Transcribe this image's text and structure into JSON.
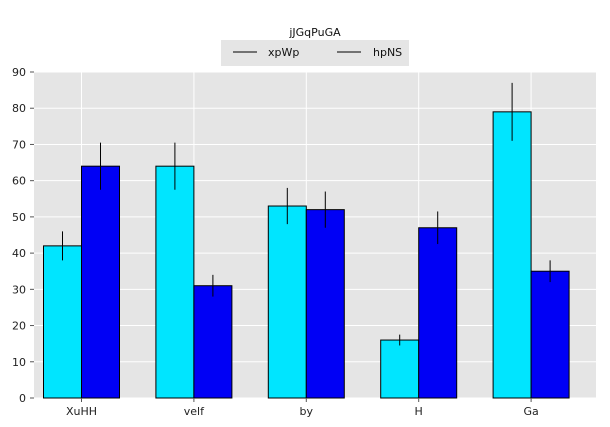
{
  "chart_data": {
    "type": "bar",
    "title": "jJGqPuGA",
    "xlabel": "",
    "ylabel": "",
    "categories": [
      "XuHH",
      "velf",
      "by",
      "H",
      "Ga"
    ],
    "ylim": [
      0,
      90
    ],
    "yticks": [
      0,
      10,
      20,
      30,
      40,
      50,
      60,
      70,
      80,
      90
    ],
    "grid": true,
    "legend_position": "top-center",
    "series": [
      {
        "name": "xpWp",
        "color": "#00e5ff",
        "values": [
          42,
          64,
          53,
          16,
          79
        ],
        "errors": [
          4,
          6.5,
          5,
          1.5,
          8
        ]
      },
      {
        "name": "hpNS",
        "color": "#0000f5",
        "values": [
          64,
          31,
          52,
          47,
          35
        ],
        "errors": [
          6.5,
          3,
          5,
          4.5,
          3
        ]
      }
    ]
  }
}
